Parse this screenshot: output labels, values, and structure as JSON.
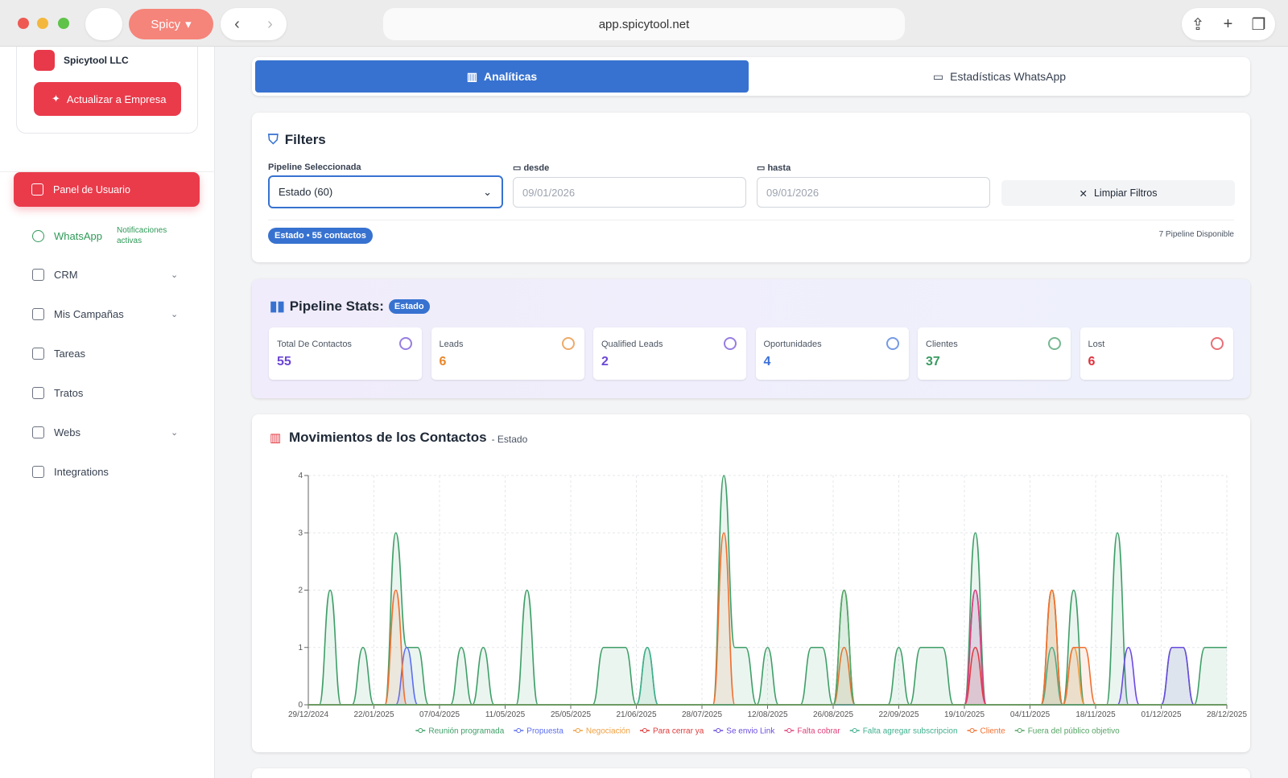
{
  "browser": {
    "app": "Spicy",
    "url": "app.spicytool.net"
  },
  "sidebar": {
    "company": "Spicytool LLC",
    "upgrade": "Actualizar a Empresa",
    "active": "Panel de Usuario",
    "whatsapp": "WhatsApp",
    "whatsapp_status": "Notificaciones activas",
    "items": [
      "CRM",
      "Mis Campañas",
      "Tareas",
      "Tratos",
      "Webs",
      "Integrations"
    ]
  },
  "tabs": [
    "Analíticas",
    "Estadísticas WhatsApp"
  ],
  "filters": {
    "title": "Filters",
    "pipeline_label": "Pipeline Seleccionada",
    "pipeline_value": "Estado (60)",
    "from_label": "desde",
    "from_value": "09/01/2026",
    "to_label": "hasta",
    "to_value": "09/01/2026",
    "clear": "Limpiar Filtros",
    "badge": "Estado • 55 contactos",
    "available": "7 Pipeline Disponible"
  },
  "stats": {
    "title": "Pipeline Stats:",
    "badge": "Estado",
    "cards": [
      {
        "label": "Total De Contactos",
        "value": "55",
        "color": "#6b46d6"
      },
      {
        "label": "Leads",
        "value": "6",
        "color": "#e8862a"
      },
      {
        "label": "Qualified Leads",
        "value": "2",
        "color": "#6b46d6"
      },
      {
        "label": "Oportunidades",
        "value": "4",
        "color": "#3a6fd8"
      },
      {
        "label": "Clientes",
        "value": "37",
        "color": "#3a9a62"
      },
      {
        "label": "Lost",
        "value": "6",
        "color": "#e0323c"
      }
    ]
  },
  "chart_data": {
    "type": "area",
    "title": "Movimientos de los Contactos",
    "subtitle": "- Estado",
    "categories": [
      "29/12/2024",
      null,
      null,
      null,
      null,
      null,
      "22/01/2025",
      null,
      null,
      null,
      null,
      null,
      "07/04/2025",
      null,
      null,
      null,
      null,
      null,
      "11/05/2025",
      null,
      null,
      null,
      null,
      null,
      "25/05/2025",
      null,
      null,
      null,
      null,
      null,
      "21/06/2025",
      null,
      null,
      null,
      null,
      null,
      "28/07/2025",
      null,
      null,
      null,
      null,
      null,
      "12/08/2025",
      null,
      null,
      null,
      null,
      null,
      "26/08/2025",
      null,
      null,
      null,
      null,
      null,
      "22/09/2025",
      null,
      null,
      null,
      null,
      null,
      "19/10/2025",
      null,
      null,
      null,
      null,
      null,
      "04/11/2025",
      null,
      null,
      null,
      null,
      null,
      "18/11/2025",
      null,
      null,
      null,
      null,
      null,
      "01/12/2025",
      null,
      null,
      null,
      null,
      null,
      "28/12/2025"
    ],
    "ylim": [
      0,
      4
    ],
    "yticks": [
      0,
      1,
      2,
      3,
      4
    ],
    "grid": true,
    "series": [
      {
        "name": "Reunión programada",
        "color": "#3f9f68",
        "values": [
          0,
          0,
          2,
          0,
          0,
          1,
          0,
          0,
          3,
          1,
          1,
          0,
          0,
          0,
          1,
          0,
          1,
          0,
          0,
          0,
          2,
          0,
          0,
          0,
          0,
          0,
          0,
          1,
          1,
          1,
          0,
          1,
          0,
          0,
          0,
          0,
          0,
          0,
          4,
          1,
          1,
          0,
          1,
          0,
          0,
          0,
          1,
          1,
          0,
          2,
          0,
          0,
          0,
          0,
          1,
          0,
          1,
          1,
          1,
          0,
          0,
          3,
          0,
          0,
          0,
          0,
          0,
          0,
          2,
          0,
          2,
          0,
          0,
          0,
          3,
          0,
          0,
          0,
          0,
          1,
          1,
          0,
          1,
          1,
          1
        ]
      },
      {
        "name": "Propuesta",
        "color": "#5b6ef0",
        "values": [
          0,
          0,
          0,
          0,
          0,
          0,
          0,
          0,
          0,
          1,
          0,
          0,
          0,
          0,
          0,
          0,
          0,
          0,
          0,
          0,
          0,
          0,
          0,
          0,
          0,
          0,
          0,
          0,
          0,
          0,
          0,
          0,
          0,
          0,
          0,
          0,
          0,
          0,
          0,
          0,
          0,
          0,
          0,
          0,
          0,
          0,
          0,
          0,
          0,
          0,
          0,
          0,
          0,
          0,
          0,
          0,
          0,
          0,
          0,
          0,
          0,
          2,
          0,
          0,
          0,
          0,
          0,
          0,
          0,
          0,
          0,
          0,
          0,
          0,
          0,
          0,
          0,
          0,
          0,
          0,
          0,
          0,
          0,
          0,
          0
        ]
      },
      {
        "name": "Negociación",
        "color": "#f0a040",
        "values": [
          0,
          0,
          0,
          0,
          0,
          0,
          0,
          0,
          0,
          0,
          0,
          0,
          0,
          0,
          0,
          0,
          0,
          0,
          0,
          0,
          0,
          0,
          0,
          0,
          0,
          0,
          0,
          0,
          0,
          0,
          0,
          0,
          0,
          0,
          0,
          0,
          0,
          0,
          0,
          0,
          0,
          0,
          0,
          0,
          0,
          0,
          0,
          0,
          0,
          0,
          0,
          0,
          0,
          0,
          0,
          0,
          0,
          0,
          0,
          0,
          0,
          0,
          0,
          0,
          0,
          0,
          0,
          0,
          2,
          0,
          1,
          0,
          0,
          0,
          0,
          0,
          0,
          0,
          0,
          0,
          0,
          0,
          0,
          0,
          0
        ]
      },
      {
        "name": "Para cerrar ya",
        "color": "#e03a3a",
        "values": [
          0,
          0,
          0,
          0,
          0,
          0,
          0,
          0,
          0,
          0,
          0,
          0,
          0,
          0,
          0,
          0,
          0,
          0,
          0,
          0,
          0,
          0,
          0,
          0,
          0,
          0,
          0,
          0,
          0,
          0,
          0,
          0,
          0,
          0,
          0,
          0,
          0,
          0,
          0,
          0,
          0,
          0,
          0,
          0,
          0,
          0,
          0,
          0,
          0,
          0,
          0,
          0,
          0,
          0,
          0,
          0,
          0,
          0,
          0,
          0,
          0,
          1,
          0,
          0,
          0,
          0,
          0,
          0,
          0,
          0,
          0,
          0,
          0,
          0,
          0,
          0,
          0,
          0,
          0,
          0,
          0,
          0,
          0,
          0,
          0
        ]
      },
      {
        "name": "Se envio Link",
        "color": "#6a4be0",
        "values": [
          0,
          0,
          0,
          0,
          0,
          0,
          0,
          0,
          0,
          0,
          0,
          0,
          0,
          0,
          0,
          0,
          0,
          0,
          0,
          0,
          0,
          0,
          0,
          0,
          0,
          0,
          0,
          0,
          0,
          0,
          0,
          0,
          0,
          0,
          0,
          0,
          0,
          0,
          0,
          0,
          0,
          0,
          0,
          0,
          0,
          0,
          0,
          0,
          0,
          0,
          0,
          0,
          0,
          0,
          0,
          0,
          0,
          0,
          0,
          0,
          0,
          0,
          0,
          0,
          0,
          0,
          0,
          0,
          0,
          0,
          0,
          0,
          0,
          0,
          0,
          1,
          0,
          0,
          0,
          1,
          1,
          0,
          0,
          0,
          0
        ]
      },
      {
        "name": "Falta cobrar",
        "color": "#e0407a",
        "values": [
          0,
          0,
          0,
          0,
          0,
          0,
          0,
          0,
          0,
          0,
          0,
          0,
          0,
          0,
          0,
          0,
          0,
          0,
          0,
          0,
          0,
          0,
          0,
          0,
          0,
          0,
          0,
          0,
          0,
          0,
          0,
          0,
          0,
          0,
          0,
          0,
          0,
          0,
          0,
          0,
          0,
          0,
          0,
          0,
          0,
          0,
          0,
          0,
          0,
          0,
          0,
          0,
          0,
          0,
          0,
          0,
          0,
          0,
          0,
          0,
          0,
          2,
          0,
          0,
          0,
          0,
          0,
          0,
          0,
          0,
          0,
          0,
          0,
          0,
          0,
          0,
          0,
          0,
          0,
          0,
          0,
          0,
          0,
          0,
          0
        ]
      },
      {
        "name": "Falta agregar subscripcion",
        "color": "#3fb08e",
        "values": [
          0,
          0,
          0,
          0,
          0,
          0,
          0,
          0,
          0,
          0,
          0,
          0,
          0,
          0,
          0,
          0,
          0,
          0,
          0,
          0,
          0,
          0,
          0,
          0,
          0,
          0,
          0,
          0,
          0,
          0,
          0,
          1,
          0,
          0,
          0,
          0,
          0,
          0,
          0,
          0,
          0,
          0,
          0,
          0,
          0,
          0,
          0,
          0,
          0,
          0,
          0,
          0,
          0,
          0,
          0,
          0,
          0,
          0,
          0,
          0,
          0,
          0,
          0,
          0,
          0,
          0,
          0,
          0,
          1,
          0,
          0,
          0,
          0,
          0,
          0,
          0,
          0,
          0,
          0,
          0,
          0,
          0,
          0,
          0,
          0
        ]
      },
      {
        "name": "Cliente",
        "color": "#f07030",
        "values": [
          0,
          0,
          0,
          0,
          0,
          0,
          0,
          0,
          2,
          0,
          0,
          0,
          0,
          0,
          0,
          0,
          0,
          0,
          0,
          0,
          0,
          0,
          0,
          0,
          0,
          0,
          0,
          0,
          0,
          0,
          0,
          0,
          0,
          0,
          0,
          0,
          0,
          0,
          3,
          0,
          0,
          0,
          0,
          0,
          0,
          0,
          0,
          0,
          0,
          1,
          0,
          0,
          0,
          0,
          0,
          0,
          0,
          0,
          0,
          0,
          0,
          0,
          0,
          0,
          0,
          0,
          0,
          0,
          2,
          0,
          1,
          1,
          0,
          0,
          0,
          0,
          0,
          0,
          0,
          0,
          0,
          0,
          0,
          0,
          0
        ]
      },
      {
        "name": "Fuera del público objetivo",
        "color": "#55a565",
        "values": [
          0,
          0,
          0,
          0,
          0,
          0,
          0,
          0,
          0,
          0,
          0,
          0,
          0,
          0,
          0,
          0,
          0,
          0,
          0,
          0,
          0,
          0,
          0,
          0,
          0,
          0,
          0,
          0,
          0,
          0,
          0,
          0,
          0,
          0,
          0,
          0,
          0,
          0,
          0,
          0,
          0,
          0,
          0,
          0,
          0,
          0,
          0,
          0,
          0,
          2,
          0,
          0,
          0,
          0,
          0,
          0,
          0,
          0,
          0,
          0,
          0,
          0,
          0,
          0,
          0,
          0,
          0,
          0,
          0,
          0,
          0,
          0,
          0,
          0,
          0,
          0,
          0,
          0,
          0,
          0,
          0,
          0,
          0,
          0,
          0
        ]
      }
    ]
  }
}
